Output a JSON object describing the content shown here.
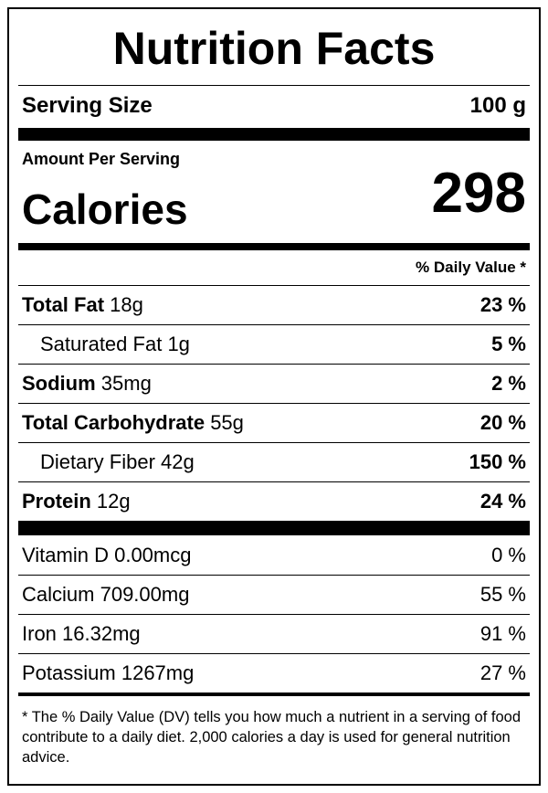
{
  "title": "Nutrition Facts",
  "serving": {
    "label": "Serving Size",
    "value": "100 g"
  },
  "amount_per_serving": "Amount Per Serving",
  "calories": {
    "label": "Calories",
    "value": "298"
  },
  "daily_value_header": "% Daily Value *",
  "nutrients": [
    {
      "name": "Total Fat",
      "amount": "18g",
      "daily_value": "23 %",
      "sub": [
        {
          "name": "Saturated Fat",
          "amount": "1g",
          "daily_value": "5 %"
        }
      ]
    },
    {
      "name": "Sodium",
      "amount": "35mg",
      "daily_value": "2 %",
      "sub": []
    },
    {
      "name": "Total Carbohydrate",
      "amount": "55g",
      "daily_value": "20 %",
      "sub": [
        {
          "name": "Dietary Fiber",
          "amount": "42g",
          "daily_value": "150 %"
        }
      ]
    },
    {
      "name": "Protein",
      "amount": "12g",
      "daily_value": "24 %",
      "sub": []
    }
  ],
  "micronutrients": [
    {
      "name": "Vitamin D",
      "amount": "0.00mcg",
      "daily_value": "0 %"
    },
    {
      "name": "Calcium",
      "amount": "709.00mg",
      "daily_value": "55 %"
    },
    {
      "name": "Iron",
      "amount": "16.32mg",
      "daily_value": "91 %"
    },
    {
      "name": "Potassium",
      "amount": "1267mg",
      "daily_value": "27 %"
    }
  ],
  "footnote": "* The % Daily Value (DV) tells you how much a nutrient in a serving of food contribute to a daily diet. 2,000 calories a day is used for general nutrition advice."
}
